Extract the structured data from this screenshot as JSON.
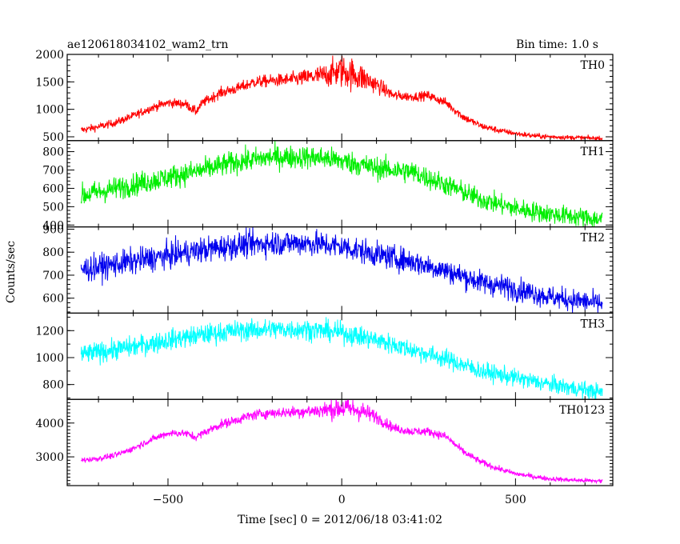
{
  "chart_data": {
    "type": "line",
    "title": "ae120618034102_wam2_trn",
    "bin_time": "Bin time: 1.0 s",
    "xlabel": "Time [sec] 0 = 2012/06/18 03:41:02",
    "ylabel": "Counts/sec",
    "xlim": [
      -790,
      780
    ],
    "xticks": [
      -500,
      0,
      500
    ],
    "panels": [
      {
        "name": "TH0",
        "color": "#ff0000",
        "ylim": [
          430,
          2000
        ],
        "yticks": [
          500,
          1000,
          1500,
          2000
        ],
        "x": [
          -750,
          -700,
          -650,
          -600,
          -550,
          -500,
          -450,
          -420,
          -400,
          -350,
          -300,
          -250,
          -200,
          -150,
          -100,
          -50,
          0,
          50,
          100,
          150,
          200,
          250,
          300,
          350,
          400,
          450,
          500,
          550,
          600,
          650,
          700,
          750
        ],
        "y": [
          620,
          680,
          760,
          880,
          1020,
          1120,
          1100,
          960,
          1120,
          1300,
          1380,
          1500,
          1520,
          1540,
          1580,
          1620,
          1700,
          1600,
          1450,
          1250,
          1230,
          1250,
          1120,
          860,
          700,
          620,
          560,
          520,
          500,
          490,
          480,
          470
        ],
        "noise": [
          50,
          50,
          50,
          55,
          55,
          60,
          60,
          60,
          60,
          70,
          70,
          80,
          80,
          90,
          110,
          150,
          220,
          200,
          110,
          70,
          60,
          60,
          60,
          55,
          45,
          40,
          35,
          35,
          30,
          30,
          30,
          30
        ]
      },
      {
        "name": "TH1",
        "color": "#00ee00",
        "ylim": [
          390,
          860
        ],
        "yticks": [
          400,
          500,
          600,
          700,
          800
        ],
        "x": [
          -750,
          -700,
          -600,
          -500,
          -400,
          -300,
          -200,
          -100,
          -50,
          0,
          50,
          100,
          200,
          300,
          400,
          500,
          600,
          700,
          750
        ],
        "y": [
          560,
          580,
          620,
          660,
          700,
          745,
          770,
          770,
          765,
          750,
          730,
          710,
          690,
          620,
          540,
          490,
          460,
          440,
          430
        ],
        "noise": [
          45,
          45,
          45,
          45,
          45,
          45,
          45,
          45,
          45,
          45,
          45,
          45,
          45,
          42,
          40,
          40,
          38,
          38,
          38
        ]
      },
      {
        "name": "TH2",
        "color": "#0000ee",
        "ylim": [
          535,
          910
        ],
        "yticks": [
          600,
          700,
          800,
          900
        ],
        "x": [
          -750,
          -700,
          -600,
          -500,
          -400,
          -300,
          -200,
          -100,
          0,
          100,
          200,
          300,
          400,
          500,
          600,
          700,
          750
        ],
        "y": [
          725,
          735,
          760,
          785,
          810,
          830,
          840,
          840,
          825,
          790,
          760,
          720,
          670,
          640,
          605,
          585,
          575
        ],
        "noise": [
          40,
          40,
          40,
          40,
          40,
          40,
          40,
          40,
          40,
          38,
          38,
          36,
          36,
          36,
          34,
          34,
          34
        ]
      },
      {
        "name": "TH3",
        "color": "#00ffff",
        "ylim": [
          690,
          1330
        ],
        "yticks": [
          800,
          1000,
          1200
        ],
        "x": [
          -750,
          -700,
          -600,
          -500,
          -400,
          -300,
          -200,
          -100,
          0,
          100,
          200,
          300,
          400,
          500,
          600,
          700,
          750
        ],
        "y": [
          1020,
          1040,
          1080,
          1130,
          1170,
          1200,
          1210,
          1210,
          1185,
          1130,
          1060,
          990,
          900,
          850,
          800,
          760,
          740
        ],
        "noise": [
          55,
          55,
          55,
          55,
          55,
          55,
          55,
          55,
          55,
          55,
          50,
          50,
          48,
          46,
          45,
          45,
          45
        ]
      },
      {
        "name": "TH0123",
        "color": "#ff00ff",
        "ylim": [
          2150,
          4700
        ],
        "yticks": [
          3000,
          4000
        ],
        "x": [
          -750,
          -700,
          -650,
          -600,
          -550,
          -500,
          -450,
          -420,
          -400,
          -350,
          -300,
          -250,
          -200,
          -150,
          -100,
          -50,
          0,
          50,
          100,
          150,
          200,
          250,
          300,
          350,
          400,
          450,
          500,
          550,
          600,
          650,
          700,
          750
        ],
        "y": [
          2900,
          2950,
          3050,
          3250,
          3500,
          3700,
          3700,
          3580,
          3700,
          3950,
          4100,
          4250,
          4300,
          4320,
          4350,
          4380,
          4450,
          4380,
          4180,
          3850,
          3750,
          3750,
          3600,
          3150,
          2850,
          2650,
          2500,
          2420,
          2350,
          2320,
          2300,
          2280
        ],
        "noise": [
          60,
          60,
          60,
          70,
          70,
          80,
          80,
          80,
          80,
          100,
          100,
          110,
          110,
          120,
          140,
          180,
          260,
          230,
          140,
          100,
          90,
          90,
          90,
          80,
          70,
          60,
          55,
          50,
          50,
          50,
          50,
          50
        ]
      }
    ]
  }
}
